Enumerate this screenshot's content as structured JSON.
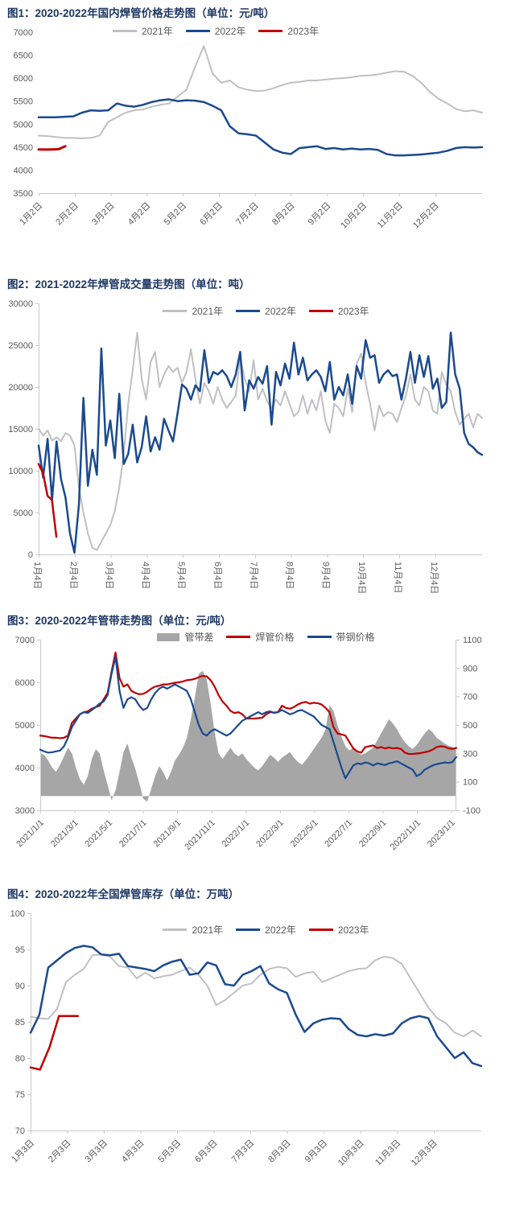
{
  "colors": {
    "y2021": "#c0c0c4",
    "y2022": "#1b4a8f",
    "y2023": "#c00000",
    "area": "#a6a6a6",
    "title": "#1f3864",
    "tick": "#595959",
    "axis": "#c9c9c9"
  },
  "charts": [
    {
      "title": "图1：2020-2022年国内焊管价格走势图（单位：元/吨）",
      "x_ticks": {
        "labels": [
          "1月2日",
          "2月2日",
          "3月2日",
          "4月2日",
          "5月2日",
          "6月2日",
          "7月2日",
          "8月2日",
          "9月2日",
          "10月2日",
          "11月2日",
          "12月2日"
        ],
        "unit_per_tick": 1,
        "total_units": 12.3
      },
      "y_left": {
        "min": 3500,
        "max": 7000,
        "labels": [
          "7000",
          "6500",
          "6000",
          "5500",
          "5000",
          "4500",
          "4000",
          "3500"
        ]
      },
      "series": [
        {
          "name": "2021年",
          "color_key": "y2021",
          "type": "line",
          "axis": "left",
          "w": 2,
          "legend_swatch": "line",
          "x_span": 1,
          "values": [
            4750,
            4740,
            4720,
            4700,
            4700,
            4690,
            4700,
            4750,
            5050,
            5150,
            5250,
            5300,
            5320,
            5380,
            5420,
            5450,
            5600,
            5750,
            6250,
            6700,
            6100,
            5900,
            5950,
            5800,
            5750,
            5720,
            5730,
            5780,
            5850,
            5900,
            5920,
            5950,
            5950,
            5970,
            5990,
            6000,
            6020,
            6050,
            6060,
            6080,
            6120,
            6150,
            6140,
            6050,
            5900,
            5700,
            5550,
            5450,
            5330,
            5280,
            5300,
            5250
          ]
        },
        {
          "name": "2022年",
          "color_key": "y2022",
          "type": "line",
          "axis": "left",
          "w": 2.5,
          "legend_swatch": "line",
          "x_span": 1,
          "values": [
            5150,
            5150,
            5150,
            5160,
            5170,
            5250,
            5300,
            5290,
            5300,
            5450,
            5400,
            5380,
            5420,
            5480,
            5520,
            5540,
            5500,
            5520,
            5510,
            5480,
            5400,
            5300,
            4950,
            4800,
            4780,
            4750,
            4600,
            4450,
            4380,
            4350,
            4480,
            4500,
            4520,
            4460,
            4480,
            4450,
            4470,
            4450,
            4460,
            4440,
            4350,
            4320,
            4320,
            4330,
            4340,
            4360,
            4380,
            4420,
            4480,
            4500,
            4490,
            4500
          ]
        },
        {
          "name": "2023年",
          "color_key": "y2023",
          "type": "line",
          "axis": "left",
          "w": 3,
          "legend_swatch": "line",
          "x_span": 0.06,
          "values": [
            4450,
            4448,
            4450,
            4455,
            4520
          ]
        }
      ]
    },
    {
      "title": "图2：2021-2022年焊管成交量走势图（单位：吨）",
      "x_ticks": {
        "labels": [
          "1月4日",
          "2月4日",
          "3月4日",
          "4月4日",
          "5月4日",
          "6月4日",
          "7月4日",
          "8月4日",
          "9月4日",
          "10月4日",
          "11月4日",
          "12月4日"
        ],
        "unit_per_tick": 1,
        "total_units": 12.3
      },
      "y_left": {
        "min": 0,
        "max": 30000,
        "labels": [
          "30000",
          "25000",
          "20000",
          "15000",
          "10000",
          "5000",
          "0"
        ]
      },
      "series": [
        {
          "name": "2021年",
          "color_key": "y2021",
          "type": "line",
          "axis": "left",
          "w": 2,
          "legend_swatch": "line",
          "x_span": 1,
          "values": [
            15000,
            14200,
            14800,
            13600,
            14000,
            13500,
            14500,
            14200,
            13000,
            8000,
            5000,
            2500,
            800,
            500,
            1500,
            2500,
            3500,
            5200,
            8000,
            12000,
            18000,
            22000,
            26500,
            21000,
            18500,
            23000,
            24200,
            20000,
            21500,
            22500,
            21800,
            22300,
            20500,
            21800,
            24500,
            21000,
            18000,
            20500,
            19500,
            18000,
            20000,
            18500,
            17500,
            18200,
            19000,
            23500,
            21000,
            19500,
            23200,
            18500,
            19800,
            18300,
            17500,
            18500,
            17800,
            19500,
            18000,
            16500,
            17000,
            19000,
            16800,
            18500,
            17200,
            19500,
            16000,
            14500,
            18000,
            17500,
            16500,
            19800,
            17000,
            22800,
            24000,
            20500,
            18000,
            14800,
            17800,
            16500,
            17000,
            16800,
            15800,
            17500,
            19000,
            21500,
            18500,
            17800,
            20000,
            19500,
            17200,
            16800,
            21800,
            20300,
            19500,
            17000,
            15500,
            16200,
            16800,
            15200,
            16800,
            16300
          ]
        },
        {
          "name": "2022年",
          "color_key": "y2022",
          "type": "line",
          "axis": "left",
          "w": 2.5,
          "legend_swatch": "line",
          "x_span": 1,
          "values": [
            13000,
            9200,
            13800,
            6500,
            13500,
            9000,
            6800,
            2500,
            200,
            6000,
            18700,
            8200,
            12500,
            9500,
            24600,
            13000,
            16000,
            11500,
            19200,
            10800,
            12000,
            15500,
            11000,
            12800,
            16500,
            12300,
            14000,
            12500,
            16200,
            14800,
            13500,
            16800,
            20300,
            19800,
            18500,
            20200,
            19500,
            24400,
            20500,
            21800,
            21500,
            22000,
            21300,
            20000,
            21500,
            24200,
            17200,
            20800,
            19800,
            21200,
            20400,
            22500,
            15500,
            21800,
            20200,
            22800,
            21000,
            25300,
            21500,
            23500,
            20800,
            21500,
            22000,
            21200,
            19500,
            23000,
            18500,
            20000,
            19000,
            21500,
            18000,
            22500,
            21000,
            25600,
            23500,
            23800,
            20500,
            21500,
            22000,
            21300,
            21500,
            18500,
            21000,
            24200,
            20500,
            23800,
            21200,
            23700,
            19800,
            21000,
            17500,
            18200,
            26500,
            21500,
            19800,
            14500,
            13200,
            12800,
            12200,
            11900
          ]
        },
        {
          "name": "2023年",
          "color_key": "y2023",
          "type": "line",
          "axis": "left",
          "w": 2.5,
          "legend_swatch": "line",
          "x_span": 0.04,
          "values": [
            10800,
            9700,
            7000,
            6500,
            2100
          ]
        }
      ]
    },
    {
      "title": "图3：2020-2022年管带走势图（单位：元/吨）",
      "x_ticks": {
        "labels": [
          "2021/1/1",
          "2021/3/1",
          "2021/5/1",
          "2021/7/1",
          "2021/9/1",
          "2021/11/1",
          "2022/1/1",
          "2022/3/1",
          "2022/5/1",
          "2022/7/1",
          "2022/9/1",
          "2022/11/1",
          "2023/1/1"
        ],
        "unit_per_tick": 2,
        "total_units": 24.3
      },
      "y_left": {
        "min": 3000,
        "max": 7000,
        "labels": [
          "7000",
          "6000",
          "5000",
          "4000",
          "3000"
        ]
      },
      "y_right": {
        "min": -100,
        "max": 1100,
        "labels": [
          "1100",
          "900",
          "700",
          "500",
          "300",
          "100",
          "-100"
        ]
      },
      "series": [
        {
          "name": "管带差",
          "color_key": "area",
          "type": "area",
          "axis": "right",
          "w": 0,
          "legend_swatch": "box",
          "x_span": 1,
          "values": [
            300,
            290,
            250,
            200,
            170,
            220,
            280,
            340,
            300,
            200,
            120,
            80,
            140,
            260,
            330,
            300,
            180,
            80,
            -30,
            40,
            170,
            310,
            370,
            270,
            190,
            90,
            -20,
            -40,
            50,
            140,
            210,
            170,
            110,
            170,
            250,
            290,
            340,
            410,
            540,
            690,
            860,
            880,
            820,
            650,
            450,
            300,
            260,
            300,
            340,
            300,
            280,
            300,
            260,
            230,
            200,
            180,
            210,
            250,
            290,
            270,
            240,
            270,
            290,
            310,
            270,
            240,
            220,
            250,
            290,
            330,
            370,
            410,
            470,
            640,
            600,
            500,
            420,
            350,
            320,
            340,
            310,
            290,
            300,
            320,
            340,
            390,
            440,
            490,
            540,
            510,
            470,
            420,
            380,
            350,
            330,
            360,
            400,
            440,
            470,
            450,
            410,
            390,
            370,
            355,
            345,
            340
          ]
        },
        {
          "name": "焊管价格",
          "color_key": "y2023",
          "type": "line",
          "axis": "left",
          "w": 2.2,
          "legend_swatch": "line",
          "x_span": 1,
          "values": [
            4750,
            4740,
            4720,
            4700,
            4700,
            4690,
            4700,
            4750,
            5050,
            5150,
            5250,
            5300,
            5320,
            5380,
            5420,
            5450,
            5600,
            5750,
            6250,
            6700,
            6100,
            5900,
            5950,
            5800,
            5750,
            5720,
            5730,
            5780,
            5850,
            5900,
            5920,
            5950,
            5950,
            5970,
            5990,
            6000,
            6020,
            6050,
            6060,
            6080,
            6120,
            6150,
            6140,
            6050,
            5900,
            5700,
            5550,
            5450,
            5330,
            5280,
            5300,
            5250,
            5150,
            5150,
            5150,
            5160,
            5170,
            5250,
            5300,
            5290,
            5300,
            5450,
            5400,
            5380,
            5420,
            5480,
            5520,
            5540,
            5500,
            5520,
            5510,
            5480,
            5400,
            5300,
            4950,
            4800,
            4780,
            4750,
            4600,
            4450,
            4380,
            4350,
            4480,
            4500,
            4520,
            4460,
            4480,
            4450,
            4470,
            4450,
            4460,
            4440,
            4350,
            4320,
            4320,
            4330,
            4340,
            4360,
            4380,
            4420,
            4480,
            4500,
            4490,
            4450,
            4440,
            4460
          ]
        },
        {
          "name": "带钢价格",
          "color_key": "y2022",
          "type": "line",
          "axis": "left",
          "w": 2.2,
          "legend_swatch": "line",
          "x_span": 1,
          "values": [
            4420,
            4380,
            4350,
            4360,
            4380,
            4400,
            4500,
            4700,
            4950,
            5100,
            5250,
            5300,
            5280,
            5350,
            5420,
            5500,
            5550,
            5700,
            6200,
            6600,
            5800,
            5400,
            5600,
            5650,
            5600,
            5450,
            5350,
            5400,
            5600,
            5750,
            5850,
            5900,
            5850,
            5900,
            5950,
            5900,
            5850,
            5800,
            5600,
            5300,
            5000,
            4800,
            4750,
            4850,
            4900,
            4850,
            4800,
            4750,
            4800,
            4900,
            5000,
            5100,
            5150,
            5200,
            5250,
            5300,
            5250,
            5300,
            5320,
            5280,
            5300,
            5350,
            5300,
            5250,
            5280,
            5330,
            5350,
            5300,
            5250,
            5200,
            5100,
            5000,
            4950,
            4900,
            4600,
            4300,
            4000,
            3750,
            3900,
            4050,
            4100,
            4080,
            4120,
            4100,
            4050,
            4100,
            4080,
            4060,
            4100,
            4120,
            4150,
            4100,
            4050,
            4000,
            3950,
            3800,
            3850,
            3950,
            4000,
            4050,
            4080,
            4100,
            4120,
            4110,
            4130,
            4250
          ]
        }
      ]
    },
    {
      "title": "图4：2020-2022年全国焊管库存（单位：万吨）",
      "x_ticks": {
        "labels": [
          "1月3日",
          "2月3日",
          "3月3日",
          "4月3日",
          "5月3日",
          "6月3日",
          "7月3日",
          "8月3日",
          "9月3日",
          "10月3日",
          "11月3日",
          "12月3日"
        ],
        "unit_per_tick": 1,
        "total_units": 12.3
      },
      "y_left": {
        "min": 70,
        "max": 100,
        "labels": [
          "100",
          "95",
          "90",
          "85",
          "80",
          "75",
          "70"
        ]
      },
      "series": [
        {
          "name": "2021年",
          "color_key": "y2021",
          "type": "line",
          "axis": "left",
          "w": 2,
          "legend_swatch": "line",
          "x_span": 1,
          "values": [
            85.7,
            85.5,
            85.4,
            86.8,
            90.5,
            91.5,
            92.3,
            94.2,
            94.3,
            94.0,
            92.7,
            92.5,
            91.0,
            91.8,
            91.0,
            91.3,
            91.5,
            92.0,
            92.5,
            91.5,
            90.0,
            87.3,
            88.0,
            89.0,
            90.0,
            90.3,
            91.5,
            92.3,
            92.6,
            92.4,
            91.2,
            91.7,
            91.9,
            90.5,
            91.0,
            91.5,
            92.0,
            92.3,
            92.4,
            93.5,
            94.0,
            93.8,
            93.0,
            91.0,
            89.0,
            87.0,
            85.5,
            84.8,
            83.5,
            83.0,
            83.8,
            83.0
          ]
        },
        {
          "name": "2022年",
          "color_key": "y2022",
          "type": "line",
          "axis": "left",
          "w": 2.5,
          "legend_swatch": "line",
          "x_span": 1,
          "values": [
            83.5,
            86.0,
            92.5,
            93.5,
            94.5,
            95.2,
            95.5,
            95.3,
            94.3,
            94.2,
            94.4,
            92.7,
            92.5,
            92.3,
            92.0,
            92.8,
            93.3,
            93.6,
            91.5,
            91.7,
            93.2,
            92.8,
            90.2,
            90.0,
            91.5,
            92.0,
            92.7,
            90.3,
            89.5,
            89.0,
            86.0,
            83.6,
            84.8,
            85.3,
            85.5,
            85.4,
            84.0,
            83.2,
            83.0,
            83.3,
            83.1,
            83.4,
            84.8,
            85.5,
            85.8,
            85.5,
            83.0,
            81.5,
            80.0,
            80.8,
            79.3,
            78.9
          ]
        },
        {
          "name": "2023年",
          "color_key": "y2023",
          "type": "line",
          "axis": "left",
          "w": 2.5,
          "legend_swatch": "line",
          "x_span": 0.105,
          "values": [
            78.7,
            78.4,
            81.5,
            85.8,
            85.8,
            85.8
          ]
        }
      ]
    }
  ]
}
